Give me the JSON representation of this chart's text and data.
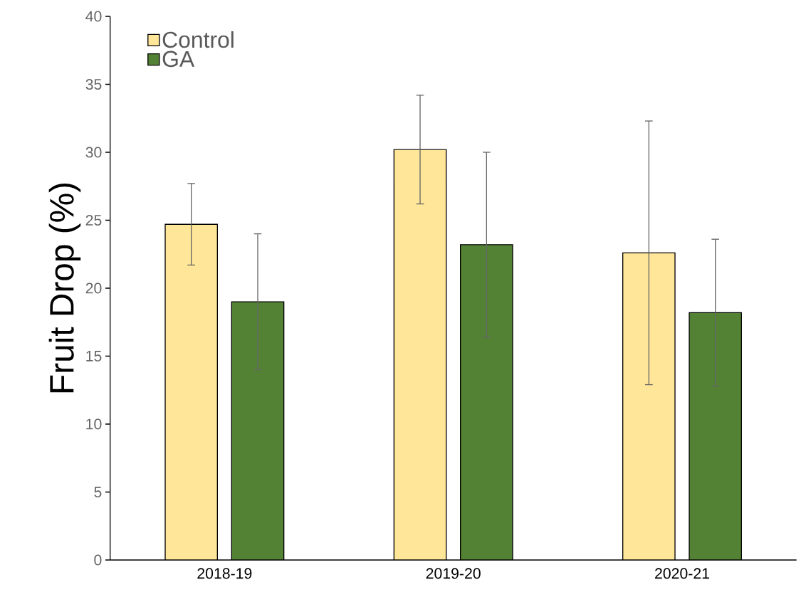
{
  "chart_data": {
    "type": "bar",
    "ylabel": "Fruit Drop (%)",
    "categories": [
      "2018-19",
      "2019-20",
      "2020-21"
    ],
    "series": [
      {
        "name": "Control",
        "color": "#ffe699",
        "values": [
          24.7,
          30.2,
          22.6
        ],
        "errors": [
          3.0,
          4.0,
          9.7
        ]
      },
      {
        "name": "GA",
        "color": "#548235",
        "values": [
          19.0,
          23.2,
          18.2
        ],
        "errors": [
          5.0,
          6.8,
          5.4
        ]
      }
    ],
    "ylim": [
      0,
      40
    ],
    "yticks": [
      0,
      5,
      10,
      15,
      20,
      25,
      30,
      35,
      40
    ],
    "legend": "top left",
    "grid": false
  }
}
